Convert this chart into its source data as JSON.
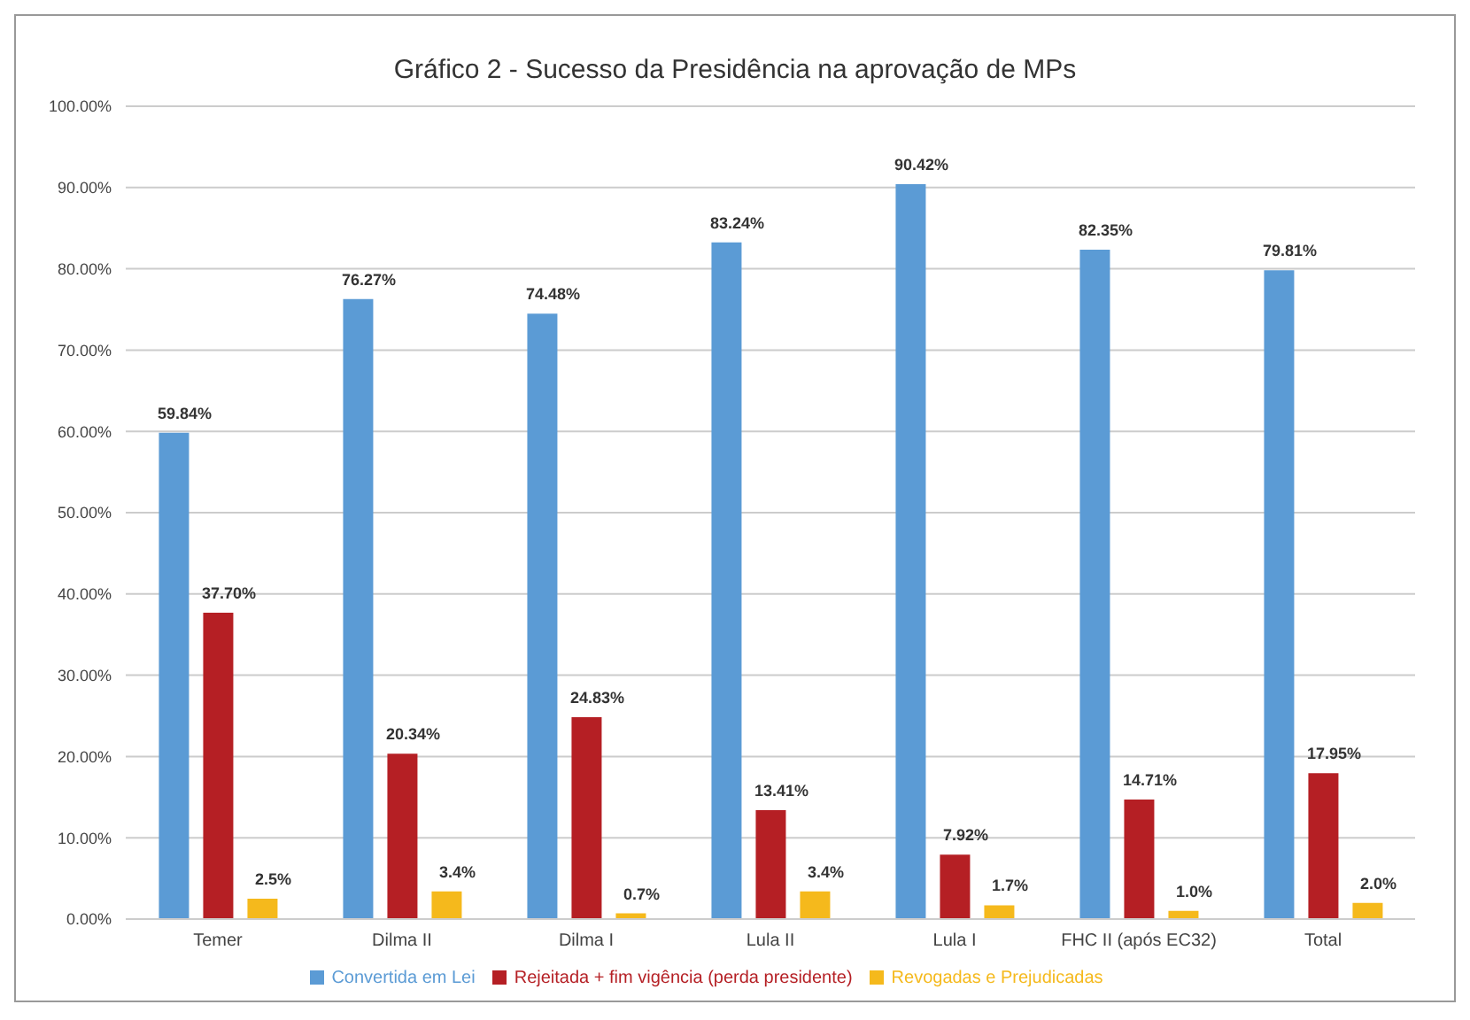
{
  "chart_data": {
    "type": "bar",
    "title": "Gráfico 2 - Sucesso da Presidência na aprovação de MPs",
    "categories": [
      "Temer",
      "Dilma II",
      "Dilma I",
      "Lula II",
      "Lula I",
      "FHC II (após EC32)",
      "Total"
    ],
    "series": [
      {
        "name": "Convertida em Lei",
        "color": "#5b9bd5",
        "values": [
          59.84,
          76.27,
          74.48,
          83.24,
          90.42,
          82.35,
          79.81
        ],
        "value_labels": [
          "59.84%",
          "76.27%",
          "74.48%",
          "83.24%",
          "90.42%",
          "82.35%",
          "79.81%"
        ]
      },
      {
        "name": "Rejeitada + fim vigência (perda presidente)",
        "color": "#b51f24",
        "values": [
          37.7,
          20.34,
          24.83,
          13.41,
          7.92,
          14.71,
          17.95
        ],
        "value_labels": [
          "37.70%",
          "20.34%",
          "24.83%",
          "13.41%",
          "7.92%",
          "14.71%",
          "17.95%"
        ]
      },
      {
        "name": "Revogadas e Prejudicadas",
        "color": "#f5b91c",
        "values": [
          2.5,
          3.4,
          0.7,
          3.4,
          1.7,
          1.0,
          2.0
        ],
        "value_labels": [
          "2.5%",
          "3.4%",
          "0.7%",
          "3.4%",
          "1.7%",
          "1.0%",
          "2.0%"
        ]
      }
    ],
    "ylim": [
      0,
      100
    ],
    "yticks": [
      {
        "value": 0,
        "label": "0.00%"
      },
      {
        "value": 10,
        "label": "10.00%"
      },
      {
        "value": 20,
        "label": "20.00%"
      },
      {
        "value": 30,
        "label": "30.00%"
      },
      {
        "value": 40,
        "label": "40.00%"
      },
      {
        "value": 50,
        "label": "50.00%"
      },
      {
        "value": 60,
        "label": "60.00%"
      },
      {
        "value": 70,
        "label": "70.00%"
      },
      {
        "value": 80,
        "label": "80.00%"
      },
      {
        "value": 90,
        "label": "90.00%"
      },
      {
        "value": 100,
        "label": "100.00%"
      }
    ],
    "grid": "y",
    "legend": "bottom"
  }
}
